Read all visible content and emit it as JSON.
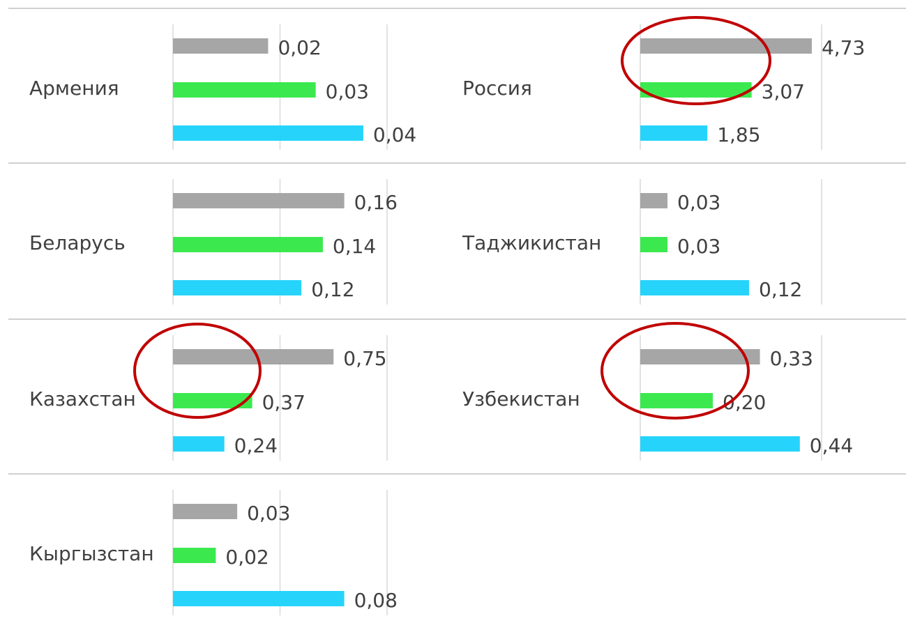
{
  "chart_data": [
    {
      "type": "bar",
      "title": "Армения",
      "values": [
        0.02,
        0.03,
        0.04
      ],
      "value_labels": [
        "0,02",
        "0,03",
        "0,04"
      ],
      "colors": [
        "#a6a6a6",
        "#3be94f",
        "#26d4fb"
      ],
      "xlim": [
        0,
        0.045
      ],
      "xticks": [
        0,
        0.0225,
        0.045
      ]
    },
    {
      "type": "bar",
      "title": "Россия",
      "values": [
        4.73,
        3.07,
        1.85
      ],
      "value_labels": [
        "4,73",
        "3,07",
        "1,85"
      ],
      "colors": [
        "#a6a6a6",
        "#3be94f",
        "#26d4fb"
      ],
      "xlim": [
        0,
        5
      ],
      "xticks": [
        0,
        5
      ]
    },
    {
      "type": "bar",
      "title": "Беларусь",
      "values": [
        0.16,
        0.14,
        0.12
      ],
      "value_labels": [
        "0,16",
        "0,14",
        "0,12"
      ],
      "colors": [
        "#a6a6a6",
        "#3be94f",
        "#26d4fb"
      ],
      "xlim": [
        0,
        0.2
      ],
      "xticks": [
        0,
        0.1,
        0.2
      ]
    },
    {
      "type": "bar",
      "title": "Таджикистан",
      "values": [
        0.03,
        0.03,
        0.12
      ],
      "value_labels": [
        "0,03",
        "0,03",
        "0,12"
      ],
      "colors": [
        "#a6a6a6",
        "#3be94f",
        "#26d4fb"
      ],
      "xlim": [
        0,
        0.2
      ],
      "xticks": [
        0,
        0.2
      ]
    },
    {
      "type": "bar",
      "title": "Казахстан",
      "values": [
        0.75,
        0.37,
        0.24
      ],
      "value_labels": [
        "0,75",
        "0,37",
        "0,24"
      ],
      "colors": [
        "#a6a6a6",
        "#3be94f",
        "#26d4fb"
      ],
      "xlim": [
        0,
        1
      ],
      "xticks": [
        0,
        0.5,
        1
      ]
    },
    {
      "type": "bar",
      "title": "Узбекистан",
      "values": [
        0.33,
        0.2,
        0.44
      ],
      "value_labels": [
        "0,33",
        "0,20",
        "0,44"
      ],
      "colors": [
        "#a6a6a6",
        "#3be94f",
        "#26d4fb"
      ],
      "xlim": [
        0,
        0.5
      ],
      "xticks": [
        0,
        0.5
      ]
    },
    {
      "type": "bar",
      "title": "Кыргызстан",
      "values": [
        0.03,
        0.02,
        0.08
      ],
      "value_labels": [
        "0,03",
        "0,02",
        "0,08"
      ],
      "colors": [
        "#a6a6a6",
        "#3be94f",
        "#26d4fb"
      ],
      "xlim": [
        0,
        0.1
      ],
      "xticks": [
        0,
        0.05,
        0.1
      ]
    }
  ]
}
